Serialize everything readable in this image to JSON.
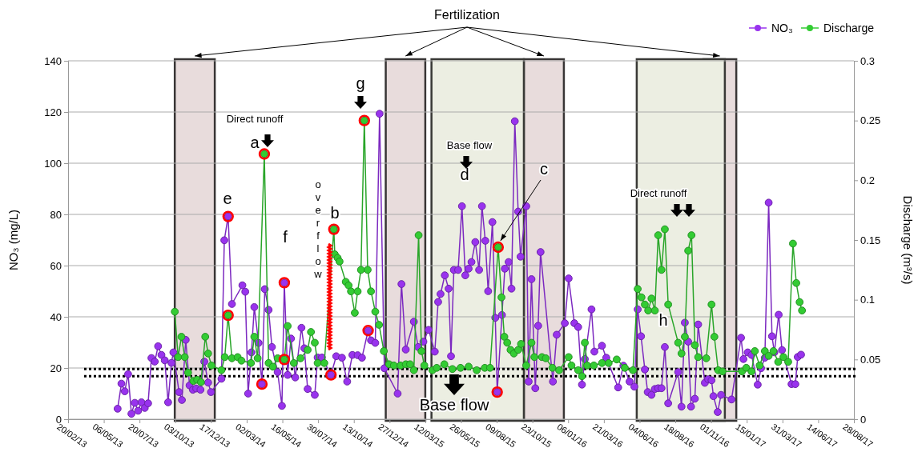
{
  "chart_data": {
    "type": "line",
    "ylabel": "NO₃ (mg/L)",
    "y2label": "Discharge (m³/s)",
    "xlim": [
      "2013-02-20",
      "2017-08-28"
    ],
    "xticks": [
      {
        "value": "2013-02-20",
        "label": "20/02/13"
      },
      {
        "value": "2013-05-06",
        "label": "06/05/13"
      },
      {
        "value": "2013-07-20",
        "label": "20/07/13"
      },
      {
        "value": "2013-10-03",
        "label": "03/10/13"
      },
      {
        "value": "2013-12-17",
        "label": "17/12/13"
      },
      {
        "value": "2014-03-02",
        "label": "02/03/14"
      },
      {
        "value": "2014-05-16",
        "label": "16/05/14"
      },
      {
        "value": "2014-07-30",
        "label": "30/07/14"
      },
      {
        "value": "2014-10-13",
        "label": "13/10/14"
      },
      {
        "value": "2014-12-27",
        "label": "27/12/14"
      },
      {
        "value": "2015-03-12",
        "label": "12/03/15"
      },
      {
        "value": "2015-05-26",
        "label": "26/05/15"
      },
      {
        "value": "2015-08-09",
        "label": "09/08/15"
      },
      {
        "value": "2015-10-23",
        "label": "23/10/15"
      },
      {
        "value": "2016-01-06",
        "label": "06/01/16"
      },
      {
        "value": "2016-03-21",
        "label": "21/03/16"
      },
      {
        "value": "2016-06-04",
        "label": "04/06/16"
      },
      {
        "value": "2016-08-18",
        "label": "18/08/16"
      },
      {
        "value": "2016-11-01",
        "label": "01/11/16"
      },
      {
        "value": "2017-01-15",
        "label": "15/01/17"
      },
      {
        "value": "2017-03-31",
        "label": "31/03/17"
      },
      {
        "value": "2017-06-14",
        "label": "14/06/17"
      },
      {
        "value": "2017-08-28",
        "label": "28/08/17"
      }
    ],
    "ylim": [
      0,
      140
    ],
    "yticks": [
      0,
      20,
      40,
      60,
      80,
      100,
      120,
      140
    ],
    "y2lim": [
      0,
      0.3
    ],
    "y2ticks": [
      0,
      0.05,
      0.1,
      0.15,
      0.2,
      0.25,
      0.3
    ],
    "grid": "y",
    "legend": "top right",
    "marker": "circle",
    "line_style": "solid",
    "series": [
      {
        "name": "NO₃",
        "axis": "y",
        "color": "#9933ee",
        "x": [
          "2013-06-04",
          "2013-06-12",
          "2013-06-19",
          "2013-06-26",
          "2013-07-03",
          "2013-07-10",
          "2013-07-17",
          "2013-07-24",
          "2013-07-31",
          "2013-08-07",
          "2013-08-14",
          "2013-08-21",
          "2013-08-28",
          "2013-09-04",
          "2013-09-11",
          "2013-09-18",
          "2013-09-25",
          "2013-09-29",
          "2013-10-11",
          "2013-10-17",
          "2013-10-25",
          "2013-11-02",
          "2013-11-09",
          "2013-11-16",
          "2013-11-25",
          "2013-12-03",
          "2013-12-11",
          "2013-12-17",
          "2014-01-08",
          "2014-01-14",
          "2014-01-22",
          "2014-01-30",
          "2014-02-21",
          "2014-02-27",
          "2014-03-05",
          "2014-03-12",
          "2014-03-18",
          "2014-03-27",
          "2014-04-03",
          "2014-04-09",
          "2014-04-17",
          "2014-04-24",
          "2014-05-06",
          "2014-05-15",
          "2014-05-20",
          "2014-05-27",
          "2014-06-03",
          "2014-06-12",
          "2014-06-25",
          "2014-07-01",
          "2014-07-08",
          "2014-07-23",
          "2014-07-29",
          "2014-08-07",
          "2014-08-26",
          "2014-09-06",
          "2014-09-18",
          "2014-09-29",
          "2014-10-10",
          "2014-10-21",
          "2014-10-30",
          "2014-11-12",
          "2014-11-18",
          "2014-11-27",
          "2014-12-06",
          "2014-12-16",
          "2015-01-13",
          "2015-01-21",
          "2015-01-30",
          "2015-02-16",
          "2015-02-25",
          "2015-03-08",
          "2015-03-19",
          "2015-04-01",
          "2015-04-08",
          "2015-04-13",
          "2015-04-22",
          "2015-04-30",
          "2015-05-05",
          "2015-05-11",
          "2015-05-20",
          "2015-05-28",
          "2015-06-04",
          "2015-06-11",
          "2015-06-17",
          "2015-06-25",
          "2015-07-03",
          "2015-07-09",
          "2015-07-16",
          "2015-07-22",
          "2015-07-31",
          "2015-08-06",
          "2015-08-10",
          "2015-08-20",
          "2015-08-26",
          "2015-09-03",
          "2015-09-09",
          "2015-09-16",
          "2015-09-23",
          "2015-09-28",
          "2015-10-10",
          "2015-10-15",
          "2015-10-21",
          "2015-10-29",
          "2015-11-04",
          "2015-11-09",
          "2015-12-05",
          "2015-12-13",
          "2015-12-30",
          "2016-01-07",
          "2016-01-19",
          "2016-01-27",
          "2016-02-04",
          "2016-02-10",
          "2016-02-24",
          "2016-03-01",
          "2016-03-17",
          "2016-03-26",
          "2016-04-20",
          "2016-05-01",
          "2016-05-14",
          "2016-05-24",
          "2016-05-31",
          "2016-06-07",
          "2016-06-15",
          "2016-06-21",
          "2016-06-29",
          "2016-07-06",
          "2016-07-13",
          "2016-07-20",
          "2016-07-27",
          "2016-08-03",
          "2016-08-24",
          "2016-08-31",
          "2016-09-07",
          "2016-09-14",
          "2016-09-20",
          "2016-09-28",
          "2016-10-05",
          "2016-10-19",
          "2016-10-26",
          "2016-11-02",
          "2016-11-06",
          "2016-11-15",
          "2016-11-22",
          "2016-12-14",
          "2017-01-03",
          "2017-01-08",
          "2017-01-17",
          "2017-01-25",
          "2017-02-07",
          "2017-02-14",
          "2017-02-22",
          "2017-03-02",
          "2017-03-09",
          "2017-03-14",
          "2017-03-23",
          "2017-03-30",
          "2017-04-19",
          "2017-04-27",
          "2017-05-02",
          "2017-05-09"
        ],
        "values": [
          4.1,
          13.9,
          10.9,
          17.6,
          2.1,
          6.4,
          3.3,
          6.6,
          4.4,
          6.2,
          23.9,
          22.5,
          28.5,
          25.1,
          23,
          6.6,
          22,
          26.1,
          10.6,
          7.5,
          31,
          13.2,
          11.5,
          12,
          11.5,
          22.5,
          14.3,
          10.6,
          15.8,
          69.9,
          79.2,
          45,
          52.3,
          49.8,
          10,
          26.1,
          43.8,
          29.8,
          13.7,
          50.8,
          42.7,
          28.2,
          18.4,
          5.2,
          53.3,
          17.3,
          31.5,
          16.3,
          35.7,
          27.7,
          11.8,
          9.5,
          24.1,
          24.1,
          17.3,
          24.6,
          24,
          14.7,
          25.1,
          25,
          24,
          34.6,
          30.8,
          29.8,
          119.3,
          19.9,
          10,
          52.8,
          27.2,
          38.1,
          28.2,
          30.3,
          34.9,
          26.4,
          45.8,
          48.9,
          56.2,
          51,
          24.6,
          58.3,
          58.3,
          83.2,
          56.2,
          58.8,
          61.4,
          69.2,
          58.3,
          83.2,
          69.7,
          50,
          77,
          39.6,
          10.6,
          40.7,
          58.8,
          61.4,
          51,
          116.4,
          81.1,
          63.5,
          83.2,
          14.7,
          54.7,
          12.1,
          36.5,
          65.3,
          14.7,
          33,
          37.5,
          55,
          37.5,
          36,
          13.5,
          23.5,
          42.9,
          26.4,
          28.7,
          24,
          12.4,
          20.9,
          14.7,
          12.7,
          42.9,
          32.4,
          19.4,
          10.6,
          9.5,
          11.8,
          12.1,
          12.1,
          28.2,
          6.2,
          18.4,
          4.9,
          37.7,
          30.3,
          4.9,
          8,
          37,
          14.2,
          15.6,
          15.2,
          9,
          2.8,
          9.5,
          7.7,
          31.8,
          23.5,
          26.1,
          25.1,
          13.5,
          19.9,
          24,
          84.6,
          32.4,
          26.1,
          40.8,
          27,
          13.7,
          13.7,
          24.3,
          25.2
        ]
      },
      {
        "name": "Discharge",
        "axis": "y2",
        "color": "#33cc33",
        "x": [
          "2013-10-02",
          "2013-10-09",
          "2013-10-16",
          "2013-10-23",
          "2013-10-30",
          "2013-11-10",
          "2013-11-18",
          "2013-11-26",
          "2013-12-05",
          "2013-12-11",
          "2013-12-18",
          "2014-01-08",
          "2014-01-15",
          "2014-01-22",
          "2014-01-30",
          "2014-02-11",
          "2014-02-19",
          "2014-03-11",
          "2014-03-18",
          "2014-03-25",
          "2014-04-08",
          "2014-04-17",
          "2014-04-26",
          "2014-05-06",
          "2014-05-20",
          "2014-05-27",
          "2014-06-09",
          "2014-06-23",
          "2014-07-08",
          "2014-07-15",
          "2014-07-23",
          "2014-07-29",
          "2014-08-12",
          "2014-09-01",
          "2014-09-03",
          "2014-09-09",
          "2014-09-13",
          "2014-09-26",
          "2014-10-02",
          "2014-10-07",
          "2014-10-15",
          "2014-10-21",
          "2014-10-28",
          "2014-11-04",
          "2014-11-11",
          "2014-11-18",
          "2014-11-27",
          "2014-12-05",
          "2014-12-15",
          "2014-12-26",
          "2015-01-05",
          "2015-01-19",
          "2015-01-30",
          "2015-02-08",
          "2015-02-16",
          "2015-02-26",
          "2015-03-04",
          "2015-03-10",
          "2015-03-27",
          "2015-04-05",
          "2015-04-21",
          "2015-05-08",
          "2015-05-25",
          "2015-06-11",
          "2015-06-28",
          "2015-07-15",
          "2015-07-26",
          "2015-08-12",
          "2015-08-19",
          "2015-08-25",
          "2015-08-31",
          "2015-09-07",
          "2015-09-14",
          "2015-09-23",
          "2015-09-29",
          "2015-10-10",
          "2015-10-21",
          "2015-10-27",
          "2015-11-12",
          "2015-11-20",
          "2015-12-04",
          "2015-12-18",
          "2016-01-07",
          "2016-01-13",
          "2016-01-27",
          "2016-02-04",
          "2016-02-10",
          "2016-02-15",
          "2016-02-29",
          "2016-03-17",
          "2016-03-31",
          "2016-04-17",
          "2016-05-04",
          "2016-05-21",
          "2016-05-31",
          "2016-06-08",
          "2016-06-15",
          "2016-06-22",
          "2016-06-29",
          "2016-07-06",
          "2016-07-13",
          "2016-07-20",
          "2016-07-27",
          "2016-08-03",
          "2016-08-24",
          "2016-08-31",
          "2016-09-07",
          "2016-09-14",
          "2016-09-21",
          "2016-09-28",
          "2016-10-05",
          "2016-10-22",
          "2016-11-02",
          "2016-11-08",
          "2016-11-16",
          "2016-11-25",
          "2017-01-05",
          "2017-01-14",
          "2017-01-25",
          "2017-02-01",
          "2017-02-11",
          "2017-02-22",
          "2017-03-02",
          "2017-03-12",
          "2017-03-22",
          "2017-04-02",
          "2017-04-12",
          "2017-04-22",
          "2017-04-29",
          "2017-05-06",
          "2017-05-11"
        ],
        "values": [
          0.09,
          0.052,
          0.069,
          0.052,
          0.039,
          0.032,
          0.033,
          0.031,
          0.069,
          0.055,
          0.045,
          0.041,
          0.052,
          0.087,
          0.051,
          0.052,
          0.049,
          0.047,
          0.069,
          0.051,
          0.222,
          0.047,
          0.044,
          0.051,
          0.05,
          0.078,
          0.047,
          0.051,
          0.058,
          0.073,
          0.064,
          0.047,
          0.047,
          0.159,
          0.138,
          0.135,
          0.132,
          0.115,
          0.112,
          0.107,
          0.089,
          0.107,
          0.125,
          0.25,
          0.125,
          0.107,
          0.09,
          0.079,
          0.057,
          0.046,
          0.045,
          0.045,
          0.046,
          0.046,
          0.041,
          0.154,
          0.057,
          0.045,
          0.041,
          0.043,
          0.046,
          0.042,
          0.043,
          0.044,
          0.041,
          0.043,
          0.043,
          0.144,
          0.102,
          0.069,
          0.064,
          0.058,
          0.055,
          0.058,
          0.063,
          0.045,
          0.064,
          0.052,
          0.052,
          0.051,
          0.043,
          0.041,
          0.052,
          0.045,
          0.041,
          0.036,
          0.064,
          0.045,
          0.045,
          0.047,
          0.047,
          0.05,
          0.043,
          0.041,
          0.109,
          0.102,
          0.096,
          0.091,
          0.101,
          0.091,
          0.154,
          0.125,
          0.159,
          0.096,
          0.064,
          0.055,
          0.069,
          0.141,
          0.154,
          0.062,
          0.052,
          0.051,
          0.096,
          0.069,
          0.041,
          0.04,
          0.04,
          0.043,
          0.04,
          0.057,
          0.045,
          0.057,
          0.053,
          0.057,
          0.048,
          0.052,
          0.048,
          0.147,
          0.114,
          0.098,
          0.091
        ]
      },
      {
        "type": "scatter",
        "axis": "y",
        "color": "#ff0000",
        "x": [
          "2014-01-22",
          "2014-04-03",
          "2014-05-20",
          "2014-08-26",
          "2014-11-12",
          "2015-08-10"
        ],
        "values": [
          79.2,
          13.7,
          53.3,
          17.3,
          34.6,
          10.6
        ]
      },
      {
        "type": "scatter",
        "axis": "y2",
        "color": "#ff0000",
        "x": [
          "2014-01-22",
          "2014-04-08",
          "2014-05-20",
          "2014-09-01",
          "2014-11-04",
          "2015-08-12"
        ],
        "values": [
          0.087,
          0.222,
          0.05,
          0.159,
          0.25,
          0.144
        ]
      }
    ],
    "bands": [
      {
        "axis": "x",
        "from": "2013-10-02",
        "to": "2013-12-25",
        "color": "#e8dcdc"
      },
      {
        "axis": "x",
        "from": "2014-12-19",
        "to": "2015-03-12",
        "color": "#e8dcdc"
      },
      {
        "axis": "x",
        "from": "2015-10-05",
        "to": "2015-12-28",
        "color": "#e8dcdc"
      },
      {
        "axis": "x",
        "from": "2016-10-16",
        "to": "2016-12-24",
        "color": "#e8dcdc"
      },
      {
        "axis": "x",
        "from": "2015-03-25",
        "to": "2015-10-05",
        "color": "#eceee2"
      },
      {
        "axis": "x",
        "from": "2016-05-29",
        "to": "2016-11-30",
        "color": "#eceee2"
      }
    ],
    "ref_lines": [
      {
        "axis": "y2",
        "value": 0.042,
        "color": "#000000",
        "line_style": "dotted"
      },
      {
        "axis": "y2",
        "value": 0.036,
        "color": "#000000",
        "line_style": "dotted"
      }
    ],
    "annotations": [
      "Direct runoff",
      "a",
      "b",
      {
        "text": "c",
        "x": "2015-08-12",
        "y": 67.2
      },
      "d",
      "e",
      "f",
      "g",
      "h",
      "Base flow",
      "Direct runoff",
      "Base flow",
      "overflow",
      "Fertilization"
    ]
  }
}
